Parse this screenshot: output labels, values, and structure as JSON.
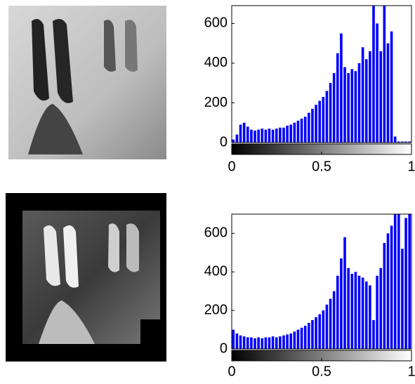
{
  "chart_data": [
    {
      "type": "histogram",
      "color": "#0000ff",
      "bins": [
        0,
        0.02,
        0.04,
        0.06,
        0.08,
        0.1,
        0.12,
        0.14,
        0.16,
        0.18,
        0.2,
        0.22,
        0.24,
        0.26,
        0.28,
        0.3,
        0.32,
        0.34,
        0.36,
        0.38,
        0.4,
        0.42,
        0.44,
        0.46,
        0.48,
        0.5,
        0.52,
        0.54,
        0.56,
        0.58,
        0.6,
        0.62,
        0.64,
        0.66,
        0.68,
        0.7,
        0.72,
        0.74,
        0.76,
        0.78,
        0.8,
        0.82,
        0.84,
        0.86,
        0.88,
        0.9,
        0.92,
        0.94,
        0.96,
        0.98,
        1
      ],
      "values": [
        15,
        40,
        90,
        100,
        80,
        65,
        60,
        65,
        70,
        65,
        70,
        65,
        70,
        75,
        75,
        85,
        90,
        100,
        110,
        120,
        130,
        150,
        170,
        190,
        210,
        230,
        260,
        300,
        350,
        450,
        550,
        380,
        350,
        370,
        360,
        400,
        480,
        420,
        460,
        690,
        600,
        460,
        690,
        500,
        560,
        30,
        5,
        5,
        5,
        5
      ],
      "xlim": [
        0,
        1
      ],
      "xticks": [
        0,
        0.5,
        1
      ],
      "ylim": [
        0,
        690
      ],
      "yticks": [
        0,
        200,
        400,
        600
      ]
    },
    {
      "type": "histogram",
      "color": "#0000ff",
      "bins": [
        0,
        0.02,
        0.04,
        0.06,
        0.08,
        0.1,
        0.12,
        0.14,
        0.16,
        0.18,
        0.2,
        0.22,
        0.24,
        0.26,
        0.28,
        0.3,
        0.32,
        0.34,
        0.36,
        0.38,
        0.4,
        0.42,
        0.44,
        0.46,
        0.48,
        0.5,
        0.52,
        0.54,
        0.56,
        0.58,
        0.6,
        0.62,
        0.64,
        0.66,
        0.68,
        0.7,
        0.72,
        0.74,
        0.76,
        0.78,
        0.8,
        0.82,
        0.84,
        0.86,
        0.88,
        0.9,
        0.92,
        0.94,
        0.96,
        0.98,
        1
      ],
      "values": [
        100,
        80,
        70,
        65,
        60,
        60,
        55,
        60,
        55,
        60,
        60,
        65,
        60,
        65,
        70,
        75,
        80,
        90,
        100,
        110,
        120,
        135,
        150,
        165,
        180,
        200,
        230,
        260,
        300,
        380,
        470,
        580,
        420,
        390,
        400,
        380,
        370,
        350,
        330,
        150,
        380,
        420,
        550,
        600,
        640,
        700,
        700,
        520,
        680,
        700
      ],
      "xlim": [
        0,
        1
      ],
      "xticks": [
        0,
        0.5,
        1
      ],
      "ylim": [
        0,
        700
      ],
      "yticks": [
        0,
        200,
        400,
        600
      ]
    }
  ]
}
